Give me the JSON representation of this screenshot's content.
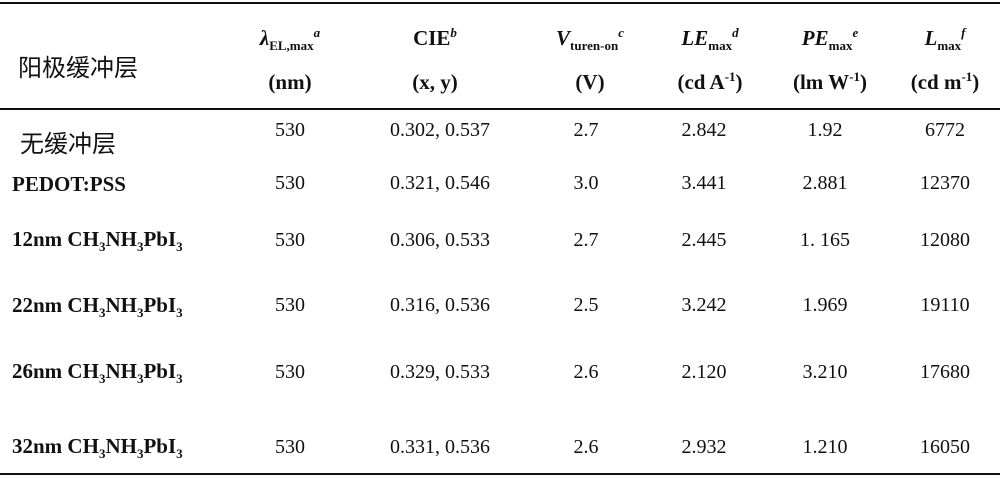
{
  "table": {
    "corner_label": "阳极缓冲层",
    "columns": [
      {
        "line1_main": "λ",
        "line1_sub": "EL,max",
        "line1_sup": "a",
        "line2": "(nm)"
      },
      {
        "line1_main": "CIE",
        "line1_sub": "",
        "line1_sup": "b",
        "line2": "(x, y)"
      },
      {
        "line1_main": "V",
        "line1_sub": "turen-on",
        "line1_sup": "c",
        "line2": "(V)"
      },
      {
        "line1_main": "LE",
        "line1_sub": "max",
        "line1_sup": "d",
        "line2_main": "(cd A",
        "line2_sup": "-1",
        "line2_end": ")"
      },
      {
        "line1_main": "PE",
        "line1_sub": "max",
        "line1_sup": "e",
        "line2_main": "(lm W",
        "line2_sup": "-1",
        "line2_end": ")"
      },
      {
        "line1_main": "L",
        "line1_sub": "max",
        "line1_sup": "f",
        "line2_main": "(cd m",
        "line2_sup": "-1",
        "line2_end": ")"
      }
    ],
    "rows": [
      {
        "label": "无缓冲层",
        "values": [
          "530",
          "0.302, 0.537",
          "2.7",
          "2.842",
          "1.92",
          "6772"
        ]
      },
      {
        "label": "PEDOT:PSS",
        "values": [
          "530",
          "0.321, 0.546",
          "3.0",
          "3.441",
          "2.881",
          "12370"
        ]
      },
      {
        "label_pre": "12nm CH",
        "values": [
          "530",
          "0.306, 0.533",
          "2.7",
          "2.445",
          "1. 165",
          "12080"
        ]
      },
      {
        "label_pre": "22nm CH",
        "values": [
          "530",
          "0.316, 0.536",
          "2.5",
          "3.242",
          "1.969",
          "19110"
        ]
      },
      {
        "label_pre": "26nm CH",
        "values": [
          "530",
          "0.329, 0.533",
          "2.6",
          "2.120",
          "3.210",
          "17680"
        ]
      },
      {
        "label_pre": "32nm CH",
        "values": [
          "530",
          "0.331, 0.536",
          "2.6",
          "2.932",
          "1.210",
          "16050"
        ]
      }
    ],
    "formula": {
      "sub3": "3",
      "nh": "NH",
      "pbi": "PbI"
    }
  }
}
